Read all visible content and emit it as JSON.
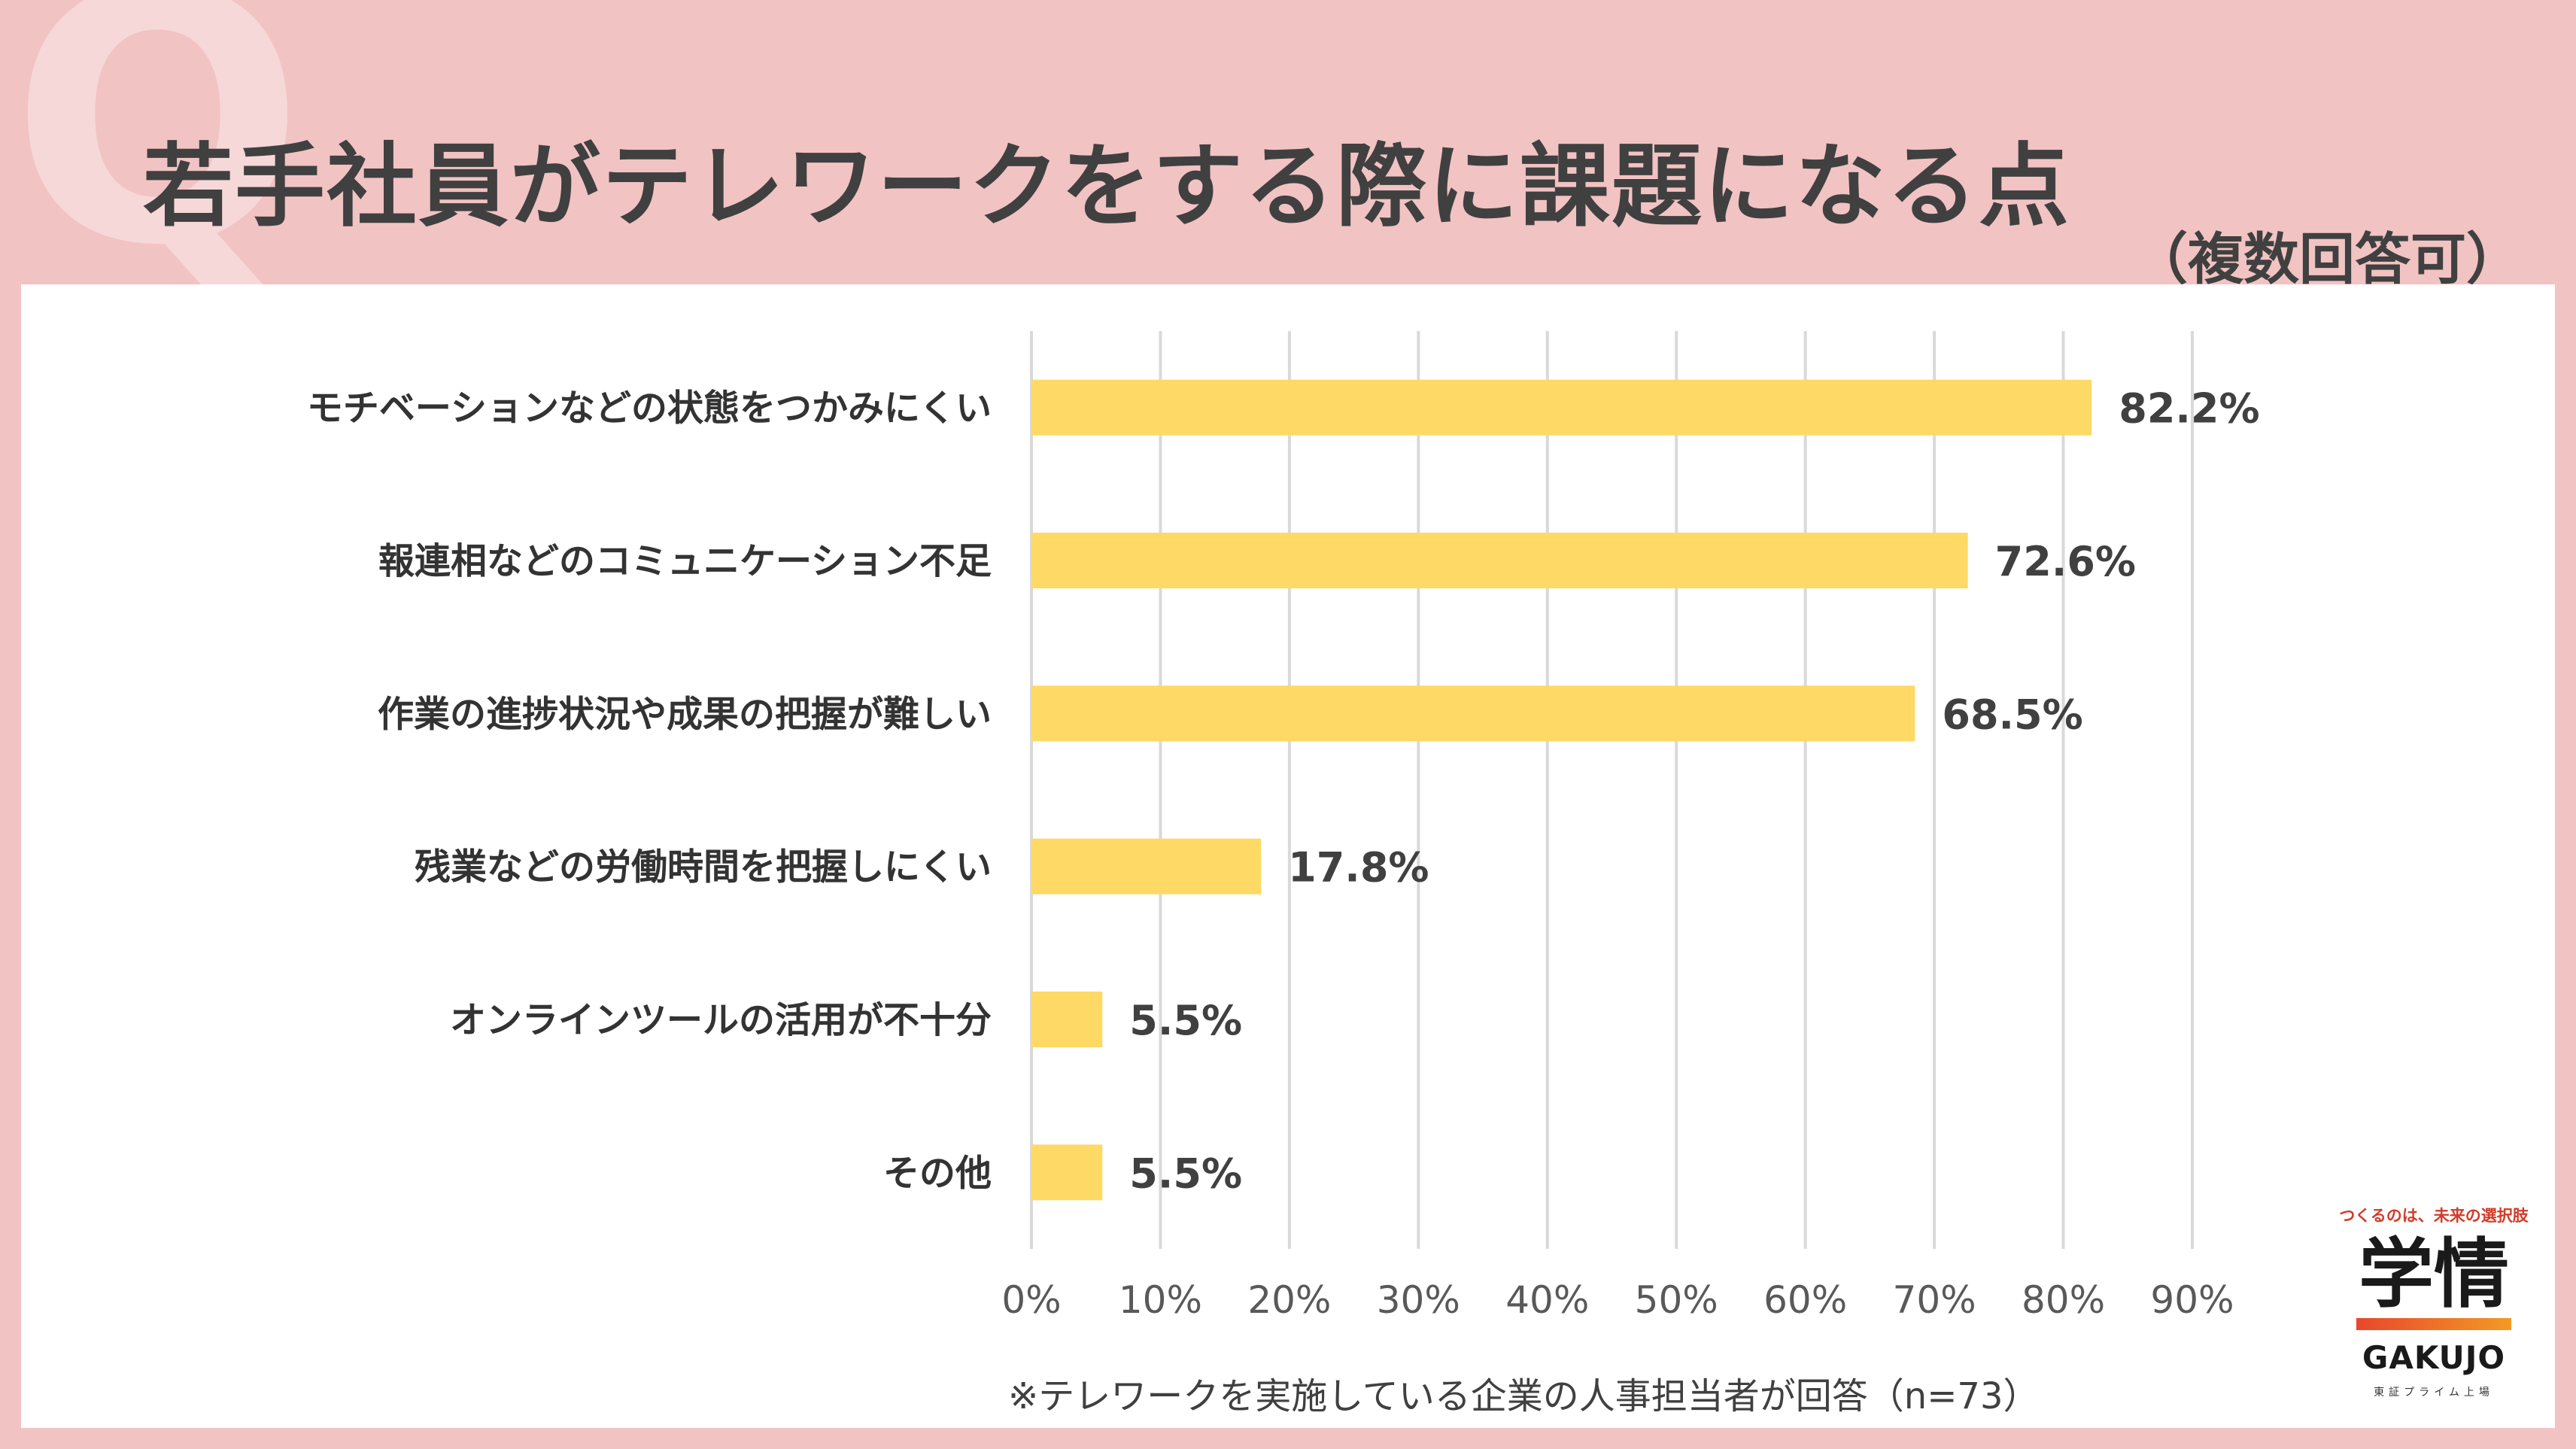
{
  "header": {
    "watermark_letter": "Q",
    "title": "若手社員がテレワークをする際に課題になる点",
    "subtitle": "（複数回答可）"
  },
  "chart_data": {
    "type": "bar",
    "orientation": "horizontal",
    "title": "若手社員がテレワークをする際に課題になる点",
    "subtitle": "（複数回答可）",
    "categories": [
      "モチベーションなどの状態をつかみにくい",
      "報連相などのコミュニケーション不足",
      "作業の進捗状況や成果の把握が難しい",
      "残業などの労働時間を把握しにくい",
      "オンラインツールの活用が不十分",
      "その他"
    ],
    "values": [
      82.2,
      72.6,
      68.5,
      17.8,
      5.5,
      5.5
    ],
    "value_labels": [
      "82.2%",
      "72.6%",
      "68.5%",
      "17.8%",
      "5.5%",
      "5.5%"
    ],
    "xlim": [
      0,
      90
    ],
    "xticks": [
      0,
      10,
      20,
      30,
      40,
      50,
      60,
      70,
      80,
      90
    ],
    "xtick_labels": [
      "0%",
      "10%",
      "20%",
      "30%",
      "40%",
      "50%",
      "60%",
      "70%",
      "80%",
      "90%"
    ],
    "grid": true,
    "bar_color": "#FFD966",
    "grid_color": "#D9D9D9"
  },
  "footnote": "※テレワークを実施している企業の人事担当者が回答（n=73）",
  "logo": {
    "tagline": "つくるのは、未来の選択肢",
    "mark": "学情",
    "name_en": "GAKUJO",
    "listing": "東証プライム上場"
  },
  "colors": {
    "background": "#F2C3C3",
    "panel": "#FFFFFF",
    "title_text": "#404040",
    "logo_accent": "#E8472C"
  }
}
